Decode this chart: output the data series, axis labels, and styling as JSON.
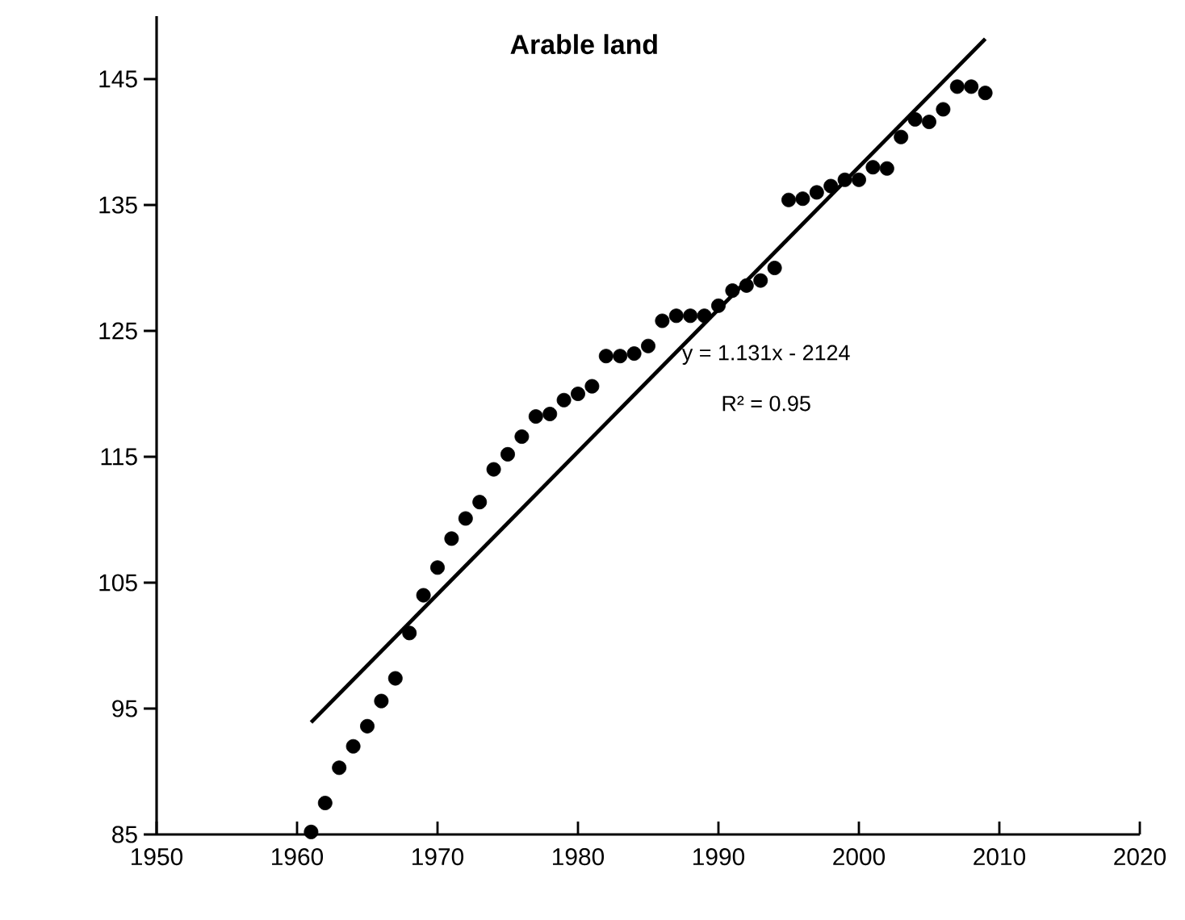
{
  "chart_data": {
    "type": "scatter",
    "title": "Arable land",
    "xlim": [
      1950,
      2020
    ],
    "xticks": [
      1950,
      1960,
      1970,
      1980,
      1990,
      2000,
      2010,
      2020
    ],
    "ylim": [
      85,
      150
    ],
    "yticks": [
      85,
      95,
      105,
      115,
      125,
      135,
      145
    ],
    "grid": false,
    "series": [
      {
        "marker": "circle",
        "color": "#000000",
        "x": [
          1961,
          1962,
          1963,
          1964,
          1965,
          1966,
          1967,
          1968,
          1969,
          1970,
          1971,
          1972,
          1973,
          1974,
          1975,
          1976,
          1977,
          1978,
          1979,
          1980,
          1981,
          1982,
          1983,
          1984,
          1985,
          1986,
          1987,
          1988,
          1989,
          1990,
          1991,
          1992,
          1993,
          1994,
          1995,
          1996,
          1997,
          1998,
          1999,
          2000,
          2001,
          2002,
          2003,
          2004,
          2005,
          2006,
          2007,
          2008,
          2009
        ],
        "values": [
          85.2,
          87.5,
          90.3,
          92.0,
          93.6,
          95.6,
          97.4,
          101.0,
          104.0,
          106.2,
          108.5,
          110.1,
          111.4,
          114.0,
          115.2,
          116.6,
          118.2,
          118.4,
          119.5,
          120.0,
          120.6,
          123.0,
          123.0,
          123.2,
          123.8,
          125.8,
          126.2,
          126.2,
          126.2,
          127.0,
          128.2,
          128.6,
          129.0,
          130.0,
          135.4,
          135.5,
          136.0,
          136.5,
          137.0,
          137.0,
          138.0,
          137.9,
          140.4,
          141.8,
          141.6,
          142.6,
          144.4,
          144.4,
          143.9
        ]
      },
      {
        "type": "line",
        "marker": "none",
        "color": "#000000",
        "x": [
          1961,
          2009
        ],
        "values": [
          93.9,
          148.2
        ]
      }
    ],
    "annotations": [
      "y = 1.131x - 2124",
      "R² = 0.95"
    ]
  }
}
